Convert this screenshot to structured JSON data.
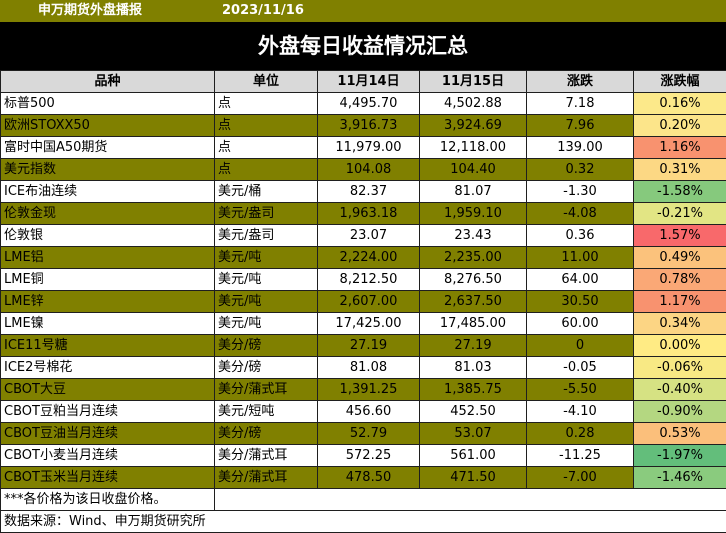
{
  "header": {
    "report_title": "申万期货外盘播报",
    "date": "2023/11/16",
    "main_title": "外盘每日收益情况汇总"
  },
  "columns": [
    "品种",
    "单位",
    "11月14日",
    "11月15日",
    "涨跌",
    "涨跌幅"
  ],
  "rows": [
    {
      "name": "标普500",
      "unit": "点",
      "d1": "4,495.70",
      "d2": "4,502.88",
      "chg": "7.18",
      "pct": "0.16%",
      "pct_color": "#fce98a",
      "band": "white"
    },
    {
      "name": "欧洲STOXX50",
      "unit": "点",
      "d1": "3,916.73",
      "d2": "3,924.69",
      "chg": "7.96",
      "pct": "0.20%",
      "pct_color": "#fce58a",
      "band": "olive"
    },
    {
      "name": "富时中国A50期货",
      "unit": "点",
      "d1": "11,979.00",
      "d2": "12,118.00",
      "chg": "139.00",
      "pct": "1.16%",
      "pct_color": "#f8926f",
      "band": "white"
    },
    {
      "name": "美元指数",
      "unit": "点",
      "d1": "104.08",
      "d2": "104.40",
      "chg": "0.32",
      "pct": "0.31%",
      "pct_color": "#fcd884",
      "band": "olive"
    },
    {
      "name": "ICE布油连续",
      "unit": "美元/桶",
      "d1": "82.37",
      "d2": "81.07",
      "chg": "-1.30",
      "pct": "-1.58%",
      "pct_color": "#86c97d",
      "band": "white"
    },
    {
      "name": "伦敦金现",
      "unit": "美元/盎司",
      "d1": "1,963.18",
      "d2": "1,959.10",
      "chg": "-4.08",
      "pct": "-0.21%",
      "pct_color": "#e2e584",
      "band": "olive"
    },
    {
      "name": "伦敦银",
      "unit": "美元/盎司",
      "d1": "23.07",
      "d2": "23.43",
      "chg": "0.36",
      "pct": "1.57%",
      "pct_color": "#f8696b",
      "band": "white"
    },
    {
      "name": "LME铝",
      "unit": "美元/吨",
      "d1": "2,224.00",
      "d2": "2,235.00",
      "chg": "11.00",
      "pct": "0.49%",
      "pct_color": "#fbc27c",
      "band": "olive"
    },
    {
      "name": "LME铜",
      "unit": "美元/吨",
      "d1": "8,212.50",
      "d2": "8,276.50",
      "chg": "64.00",
      "pct": "0.78%",
      "pct_color": "#faa876",
      "band": "white"
    },
    {
      "name": "LME锌",
      "unit": "美元/吨",
      "d1": "2,607.00",
      "d2": "2,637.50",
      "chg": "30.50",
      "pct": "1.17%",
      "pct_color": "#f8926f",
      "band": "olive"
    },
    {
      "name": "LME镍",
      "unit": "美元/吨",
      "d1": "17,425.00",
      "d2": "17,485.00",
      "chg": "60.00",
      "pct": "0.34%",
      "pct_color": "#fcd584",
      "band": "white"
    },
    {
      "name": "ICE11号糖",
      "unit": "美分/磅",
      "d1": "27.19",
      "d2": "27.19",
      "chg": "0",
      "pct": "0.00%",
      "pct_color": "#ffeb84",
      "band": "olive"
    },
    {
      "name": "ICE2号棉花",
      "unit": "美分/磅",
      "d1": "81.08",
      "d2": "81.03",
      "chg": "-0.05",
      "pct": "-0.06%",
      "pct_color": "#f8e984",
      "band": "white"
    },
    {
      "name": "CBOT大豆",
      "unit": "美分/蒲式耳",
      "d1": "1,391.25",
      "d2": "1,385.75",
      "chg": "-5.50",
      "pct": "-0.40%",
      "pct_color": "#d6e283",
      "band": "olive"
    },
    {
      "name": "CBOT豆粕当月连续",
      "unit": "美元/短吨",
      "d1": "456.60",
      "d2": "452.50",
      "chg": "-4.10",
      "pct": "-0.90%",
      "pct_color": "#b4d781",
      "band": "white"
    },
    {
      "name": "CBOT豆油当月连续",
      "unit": "美分/磅",
      "d1": "52.79",
      "d2": "53.07",
      "chg": "0.28",
      "pct": "0.53%",
      "pct_color": "#fbbf7b",
      "band": "olive"
    },
    {
      "name": "CBOT小麦当月连续",
      "unit": "美分/蒲式耳",
      "d1": "572.25",
      "d2": "561.00",
      "chg": "-11.25",
      "pct": "-1.97%",
      "pct_color": "#63be7b",
      "band": "white"
    },
    {
      "name": "CBOT玉米当月连续",
      "unit": "美分/蒲式耳",
      "d1": "478.50",
      "d2": "471.50",
      "chg": "-7.00",
      "pct": "-1.46%",
      "pct_color": "#8acb7e",
      "band": "olive"
    }
  ],
  "footer": {
    "note": "***各价格为该日收盘价格。",
    "source": "数据来源：Wind、申万期货研究所"
  }
}
